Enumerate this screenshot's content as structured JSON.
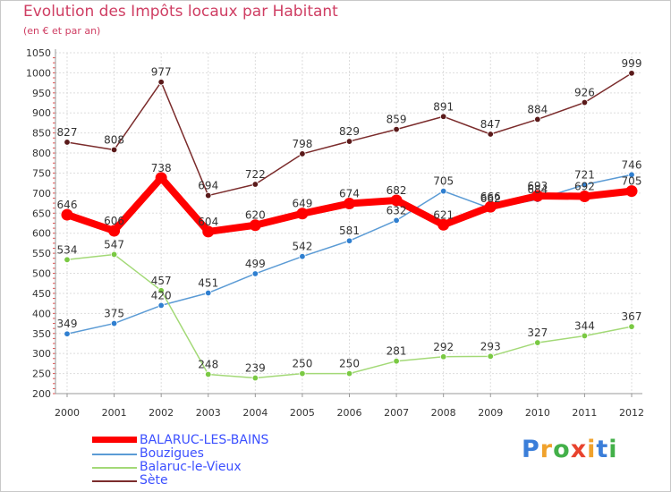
{
  "header": {
    "title": "Evolution des Impôts locaux par Habitant",
    "subtitle": "(en € et par an)"
  },
  "logo": {
    "letters": [
      "P",
      "r",
      "o",
      "x",
      "i",
      "t",
      "i"
    ],
    "colors": [
      "#3b7ed9",
      "#f0a22c",
      "#43b049",
      "#e8432e",
      "#f0a22c",
      "#3b7ed9",
      "#43b049"
    ]
  },
  "chart_data": {
    "type": "line",
    "title": "Evolution des Impôts locaux par Habitant",
    "subtitle": "(en € et par an)",
    "x": [
      "2000",
      "2001",
      "2002",
      "2003",
      "2004",
      "2005",
      "2006",
      "2007",
      "2008",
      "2009",
      "2010",
      "2011",
      "2012"
    ],
    "ylim": [
      200,
      1050
    ],
    "yticks": [
      "200",
      "250",
      "300",
      "350",
      "400",
      "450",
      "500",
      "550",
      "600",
      "650",
      "700",
      "750",
      "800",
      "850",
      "900",
      "950",
      "1000",
      "1050"
    ],
    "grid": true,
    "legend_position": "bottom-left",
    "series": [
      {
        "name": "BALARUC-LES-BAINS",
        "color": "#ff0000",
        "weight": "thick",
        "values": [
          646,
          606,
          738,
          604,
          620,
          649,
          674,
          682,
          621,
          666,
          693,
          692,
          705
        ],
        "labels": [
          "646",
          "606",
          "738",
          "604",
          "620",
          "649",
          "674",
          "682",
          "621",
          "666",
          "693",
          "692",
          "705"
        ]
      },
      {
        "name": "Bouzigues",
        "color": "#5b9bd5",
        "marker": "#2f7fd0",
        "weight": "thin",
        "values": [
          349,
          375,
          420,
          451,
          499,
          542,
          581,
          632,
          705,
          662,
          684,
          721,
          746
        ],
        "labels": [
          "349",
          "375",
          "420",
          "451",
          "499",
          "542",
          "581",
          "632",
          "705",
          "662",
          "684",
          "721",
          "746"
        ]
      },
      {
        "name": "Balaruc-le-Vieux",
        "color": "#a3d977",
        "marker": "#7ac943",
        "weight": "thin",
        "values": [
          534,
          547,
          457,
          248,
          239,
          250,
          250,
          281,
          292,
          293,
          327,
          344,
          367
        ],
        "labels": [
          "534",
          "547",
          "457",
          "248",
          "239",
          "250",
          "250",
          "281",
          "292",
          "293",
          "327",
          "344",
          "367"
        ]
      },
      {
        "name": "Sète",
        "color": "#7b2c2c",
        "marker": "#5a1a1a",
        "weight": "thin",
        "values": [
          827,
          808,
          977,
          694,
          722,
          798,
          829,
          859,
          891,
          847,
          884,
          926,
          999
        ],
        "labels": [
          "827",
          "808",
          "977",
          "694",
          "722",
          "798",
          "829",
          "859",
          "891",
          "847",
          "884",
          "926",
          "999"
        ]
      }
    ]
  }
}
